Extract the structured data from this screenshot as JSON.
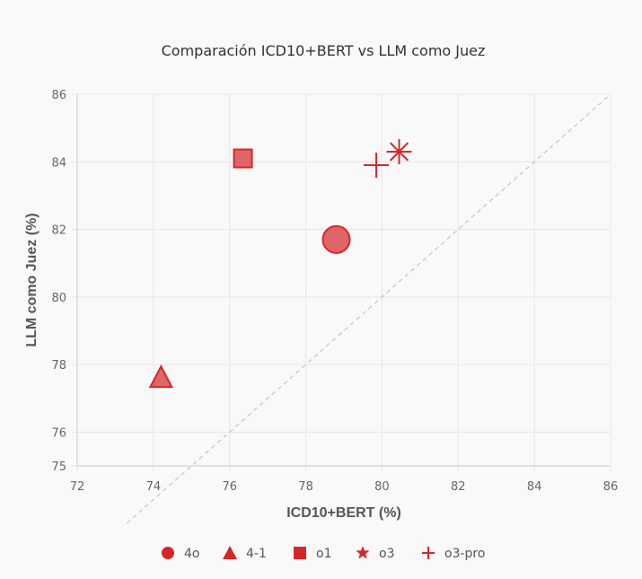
{
  "chart_data": {
    "type": "scatter",
    "title": "Comparación ICD10+BERT vs LLM como Juez",
    "xlabel": "ICD10+BERT (%)",
    "ylabel": "LLM como Juez (%)",
    "xlim": [
      72,
      86
    ],
    "ylim": [
      75,
      86
    ],
    "x_ticks": [
      "72",
      "74",
      "76",
      "78",
      "80",
      "82",
      "84",
      "86"
    ],
    "y_ticks": [
      "75",
      "76",
      "78",
      "80",
      "82",
      "84",
      "86"
    ],
    "grid": true,
    "diagonal_reference_line": true,
    "legend_position": "bottom",
    "marker_color": "#d62728",
    "series": [
      {
        "name": "4o",
        "marker": "circle",
        "x": 78.8,
        "y": 81.7
      },
      {
        "name": "4-1",
        "marker": "triangle",
        "x": 74.2,
        "y": 77.6
      },
      {
        "name": "o1",
        "marker": "square",
        "x": 76.35,
        "y": 84.1
      },
      {
        "name": "o3",
        "marker": "star",
        "x": 80.45,
        "y": 84.3
      },
      {
        "name": "o3-pro",
        "marker": "cross",
        "x": 79.85,
        "y": 83.9
      }
    ]
  }
}
